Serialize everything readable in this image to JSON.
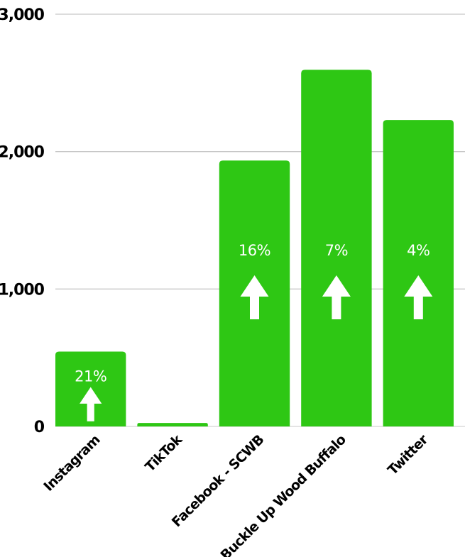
{
  "chart_data": {
    "type": "bar",
    "title": "",
    "xlabel": "",
    "ylabel": "",
    "categories": [
      "Instagram",
      "TikTok",
      "Facebook - SCWB",
      "Buckle Up Wood Buffalo",
      "Twitter"
    ],
    "values": [
      545,
      25,
      1935,
      2595,
      2230
    ],
    "ylim": [
      0,
      3000
    ],
    "yticks": [
      0,
      1000,
      2000,
      3000
    ],
    "ytick_labels": [
      "0",
      "1,000",
      "2,000",
      "3,000"
    ],
    "grid": true,
    "bar_color": "#2ec714",
    "annotations": [
      {
        "category": "Instagram",
        "text": "21%",
        "icon": "up-arrow-icon"
      },
      {
        "category": "Facebook - SCWB",
        "text": "16%",
        "icon": "up-arrow-icon"
      },
      {
        "category": "Buckle Up Wood Buffalo",
        "text": "7%",
        "icon": "up-arrow-icon"
      },
      {
        "category": "Twitter",
        "text": "4%",
        "icon": "up-arrow-icon"
      }
    ]
  }
}
